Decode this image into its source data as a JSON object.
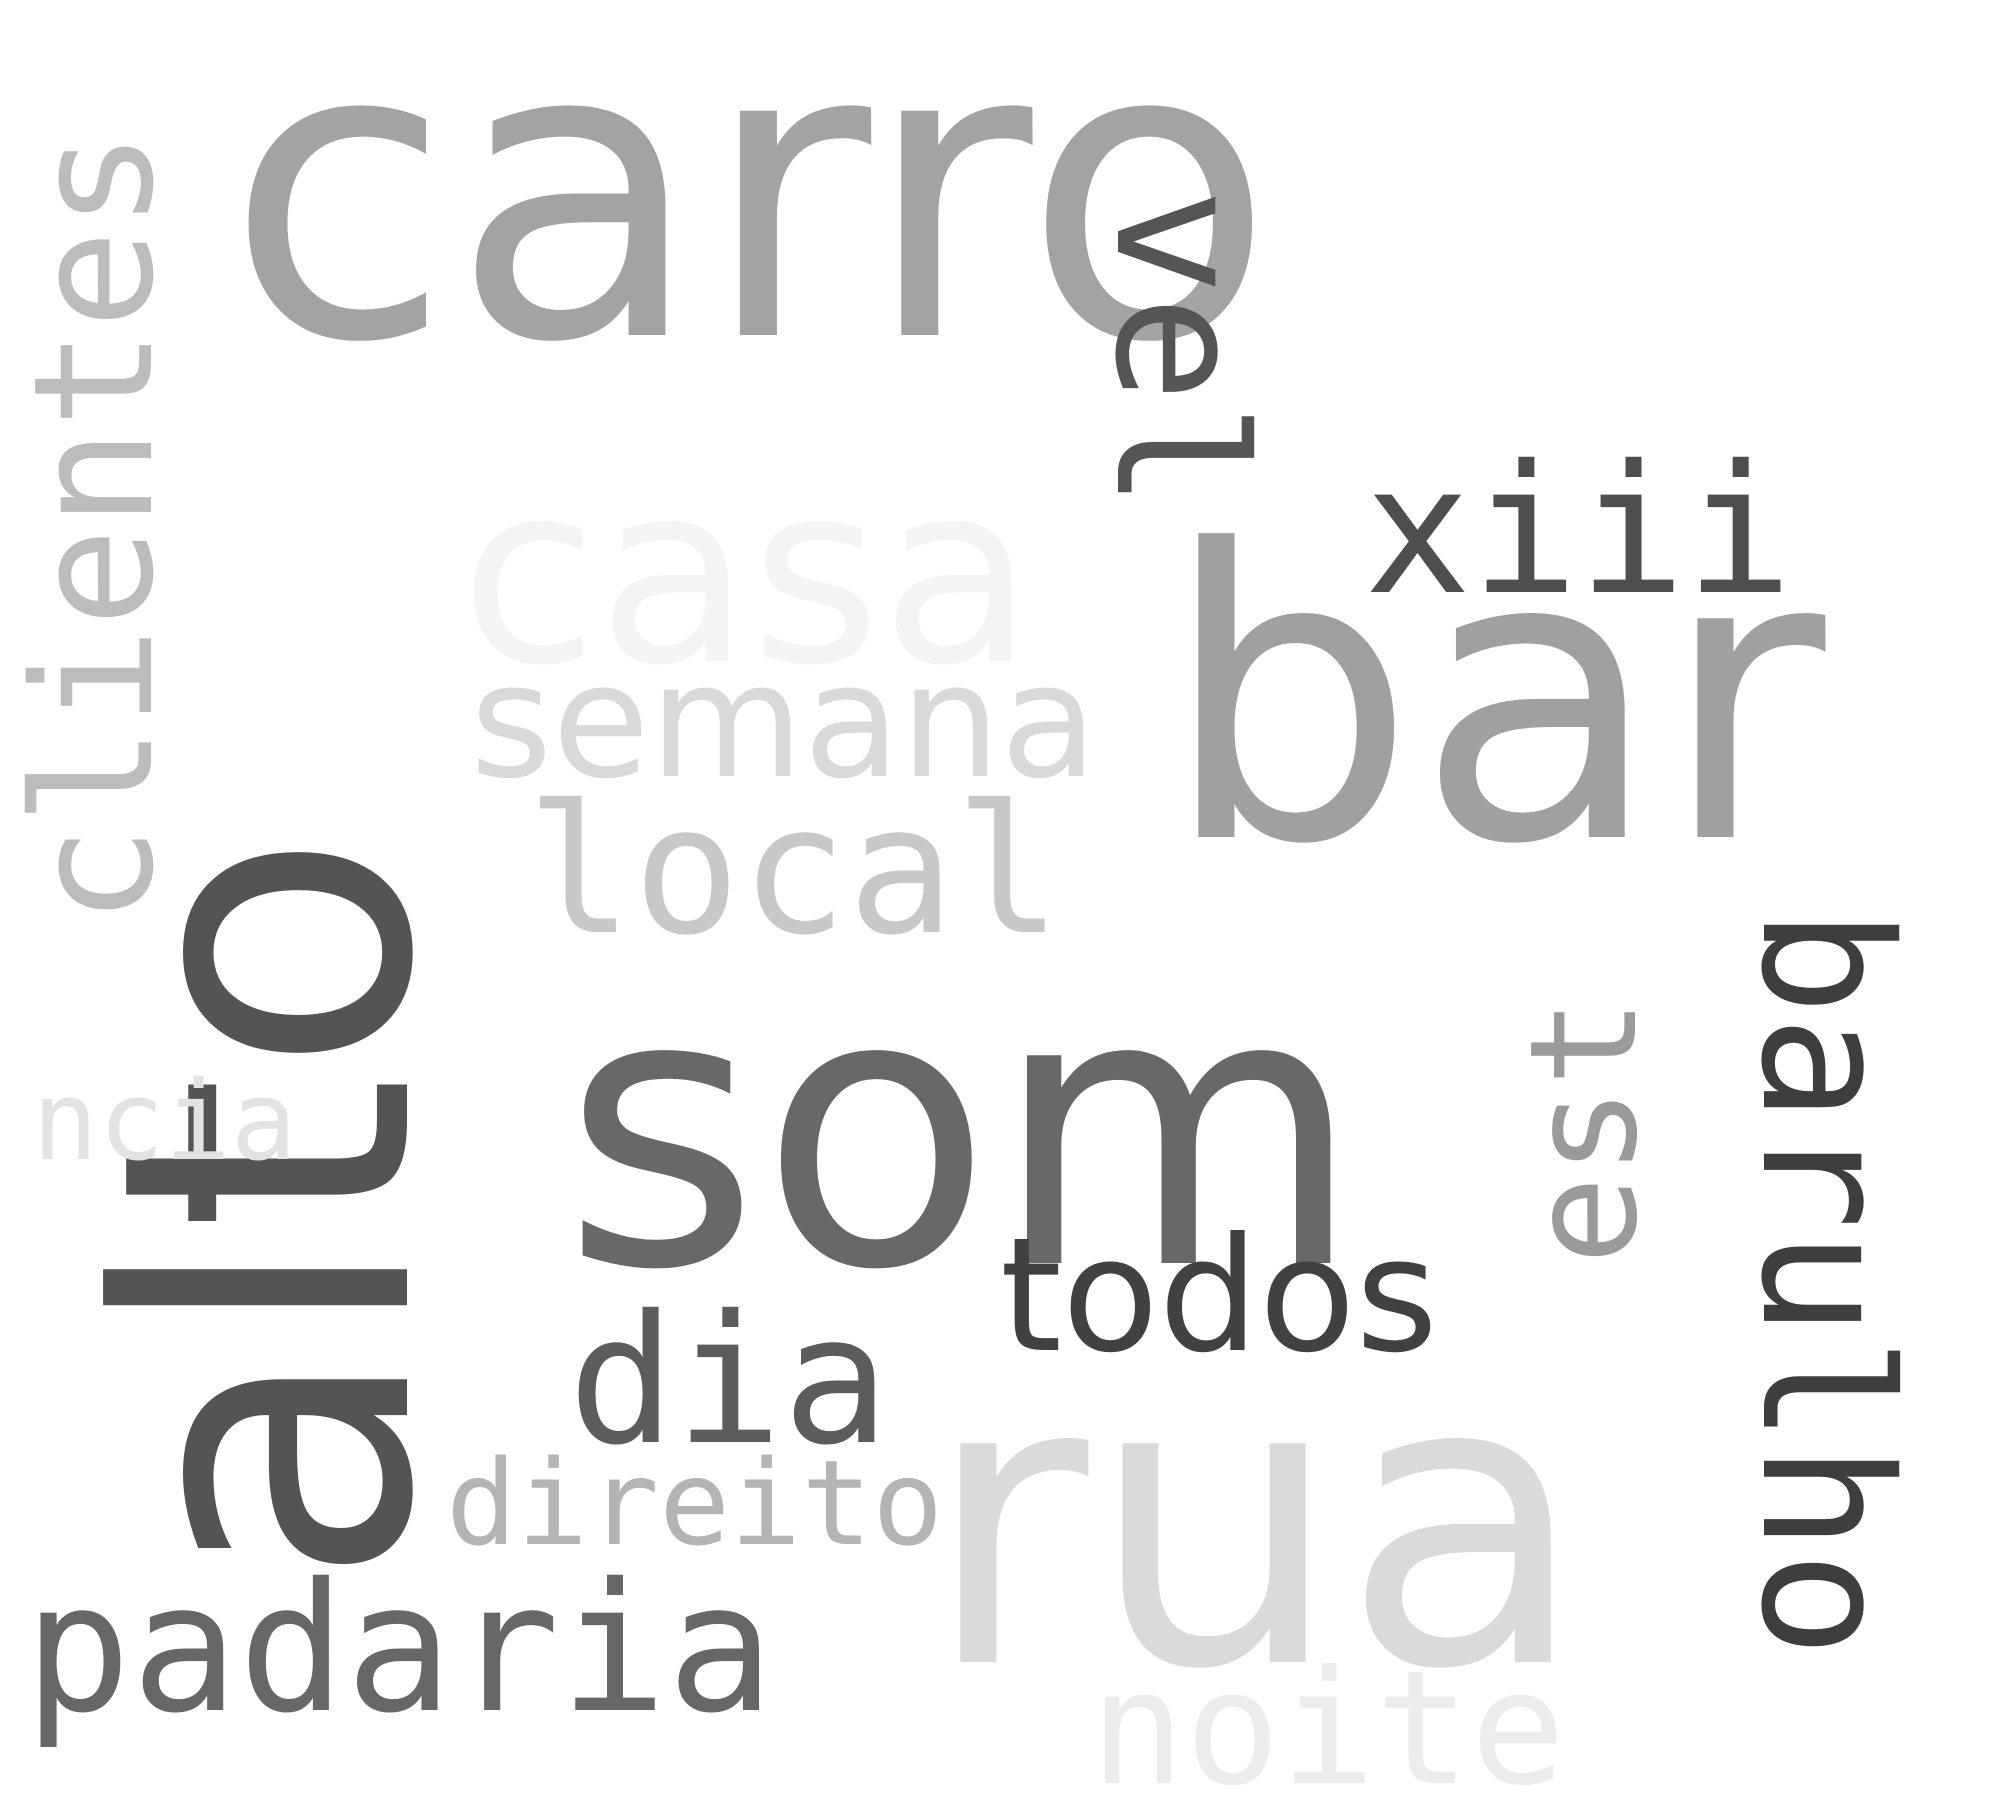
{
  "words": [
    {
      "id": "carro",
      "text": "carro",
      "color": "#a3a3a3"
    },
    {
      "id": "casa",
      "text": "casa",
      "color": "#f4f4f4"
    },
    {
      "id": "bar",
      "text": "bar",
      "color": "#a0a0a0"
    },
    {
      "id": "xiii",
      "text": "xiii",
      "color": "#4e4e4e"
    },
    {
      "id": "vel",
      "text": "vel",
      "color": "#555555"
    },
    {
      "id": "semana",
      "text": "semana",
      "color": "#d9d9d9"
    },
    {
      "id": "local",
      "text": "local",
      "color": "#c8c8c8"
    },
    {
      "id": "alto",
      "text": "alto",
      "color": "#545454"
    },
    {
      "id": "clientes",
      "text": "clientes",
      "color": "#bcbcbc"
    },
    {
      "id": "som",
      "text": "som",
      "color": "#686868"
    },
    {
      "id": "ncia",
      "text": "ncia",
      "color": "#e3e3e3"
    },
    {
      "id": "todos",
      "text": "todos",
      "color": "#414141"
    },
    {
      "id": "dia",
      "text": "dia",
      "color": "#5c5c5c"
    },
    {
      "id": "direito",
      "text": "direito",
      "color": "#b4b4b4"
    },
    {
      "id": "rua",
      "text": "rua",
      "color": "#dadada"
    },
    {
      "id": "est",
      "text": "est",
      "color": "#9a9a9a"
    },
    {
      "id": "barulho",
      "text": "barulho",
      "color": "#3e3e3e"
    },
    {
      "id": "padaria",
      "text": "padaria",
      "color": "#676767"
    },
    {
      "id": "noite",
      "text": "noite",
      "color": "#ececec"
    }
  ]
}
